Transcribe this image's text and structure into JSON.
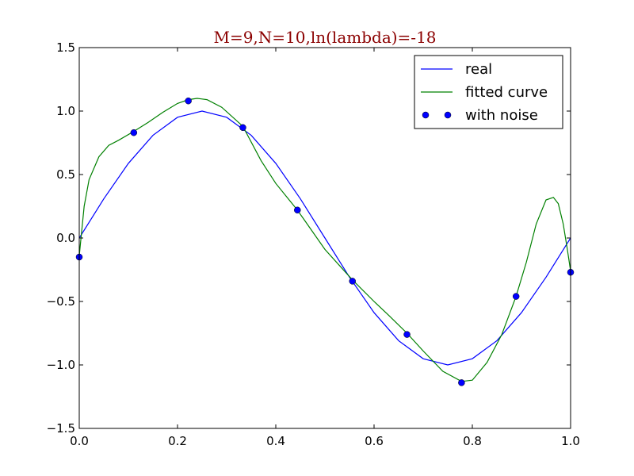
{
  "chart_data": {
    "type": "line",
    "title": "M=9,N=10,ln(lambda)=-18",
    "xlabel": "",
    "ylabel": "",
    "xlim": [
      0.0,
      1.0
    ],
    "ylim": [
      -1.5,
      1.5
    ],
    "grid": false,
    "legend_position": "top-right",
    "x_ticks": [
      {
        "value": 0.0,
        "label": "0.0"
      },
      {
        "value": 0.2,
        "label": "0.2"
      },
      {
        "value": 0.4,
        "label": "0.4"
      },
      {
        "value": 0.6,
        "label": "0.6"
      },
      {
        "value": 0.8,
        "label": "0.8"
      },
      {
        "value": 1.0,
        "label": "1.0"
      }
    ],
    "y_ticks": [
      {
        "value": 1.5,
        "label": "1.5"
      },
      {
        "value": 1.0,
        "label": "1.0"
      },
      {
        "value": 0.5,
        "label": "0.5"
      },
      {
        "value": 0.0,
        "label": "0.0"
      },
      {
        "value": -0.5,
        "label": "−0.5"
      },
      {
        "value": -1.0,
        "label": "−1.0"
      },
      {
        "value": -1.5,
        "label": "−1.5"
      }
    ],
    "series": [
      {
        "name": "real",
        "kind": "line",
        "color": "#0000ff",
        "x": [
          0.0,
          0.05,
          0.1,
          0.15,
          0.2,
          0.25,
          0.3,
          0.35,
          0.4,
          0.45,
          0.5,
          0.55,
          0.6,
          0.65,
          0.7,
          0.75,
          0.8,
          0.85,
          0.9,
          0.95,
          1.0
        ],
        "y": [
          0.0,
          0.309,
          0.588,
          0.809,
          0.951,
          1.0,
          0.951,
          0.809,
          0.588,
          0.309,
          0.0,
          -0.309,
          -0.588,
          -0.809,
          -0.951,
          -1.0,
          -0.951,
          -0.809,
          -0.588,
          -0.309,
          0.0
        ]
      },
      {
        "name": "fitted curve",
        "kind": "line",
        "color": "#008000",
        "x": [
          0.0,
          0.01,
          0.02,
          0.04,
          0.06,
          0.08,
          0.111,
          0.14,
          0.17,
          0.2,
          0.222,
          0.24,
          0.26,
          0.29,
          0.333,
          0.37,
          0.4,
          0.444,
          0.5,
          0.556,
          0.6,
          0.63,
          0.667,
          0.7,
          0.74,
          0.778,
          0.8,
          0.83,
          0.86,
          0.889,
          0.91,
          0.93,
          0.95,
          0.965,
          0.975,
          0.985,
          0.993,
          1.0
        ],
        "y": [
          -0.14,
          0.25,
          0.46,
          0.64,
          0.73,
          0.77,
          0.84,
          0.91,
          0.99,
          1.06,
          1.09,
          1.1,
          1.09,
          1.03,
          0.88,
          0.61,
          0.43,
          0.22,
          -0.09,
          -0.33,
          -0.5,
          -0.61,
          -0.75,
          -0.89,
          -1.05,
          -1.13,
          -1.12,
          -0.98,
          -0.76,
          -0.46,
          -0.19,
          0.11,
          0.3,
          0.32,
          0.27,
          0.11,
          -0.08,
          -0.26
        ]
      },
      {
        "name": "with noise",
        "kind": "scatter",
        "color": "#0000ff",
        "x": [
          0.0,
          0.111,
          0.222,
          0.333,
          0.444,
          0.556,
          0.667,
          0.778,
          0.889,
          1.0
        ],
        "y": [
          -0.15,
          0.83,
          1.08,
          0.87,
          0.22,
          -0.34,
          -0.76,
          -1.14,
          -0.46,
          -0.27
        ]
      }
    ]
  }
}
